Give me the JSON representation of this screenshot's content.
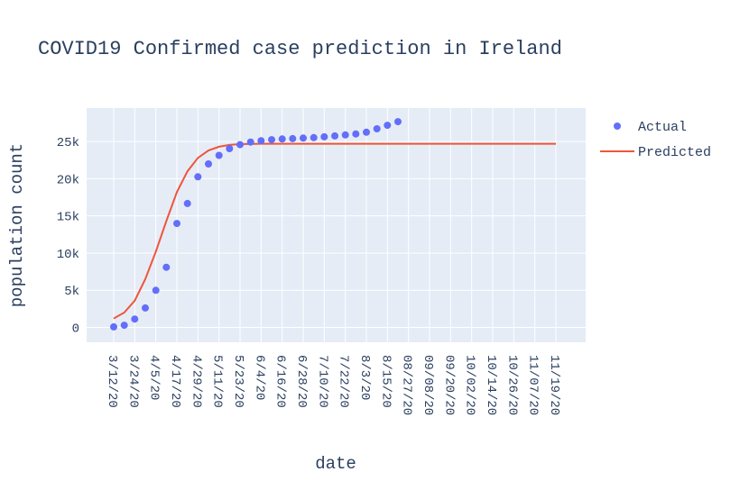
{
  "chart_data": {
    "type": "scatter+line",
    "title": "COVID19 Confirmed case prediction in  Ireland",
    "xlabel": "date",
    "ylabel": "population count",
    "ylim": [
      -2000,
      29500
    ],
    "y_ticks": [
      {
        "value": 0,
        "label": "0"
      },
      {
        "value": 5000,
        "label": "5k"
      },
      {
        "value": 10000,
        "label": "10k"
      },
      {
        "value": 15000,
        "label": "15k"
      },
      {
        "value": 20000,
        "label": "20k"
      },
      {
        "value": 25000,
        "label": "25k"
      }
    ],
    "x_ticks": [
      "3/12/20",
      "3/24/20",
      "4/5/20",
      "4/17/20",
      "4/29/20",
      "5/11/20",
      "5/23/20",
      "6/4/20",
      "6/16/20",
      "6/28/20",
      "7/10/20",
      "7/22/20",
      "8/3/20",
      "8/15/20",
      "08/27/20",
      "09/08/20",
      "09/20/20",
      "10/02/20",
      "10/14/20",
      "10/26/20",
      "11/07/20",
      "11/19/20"
    ],
    "legend": {
      "position": "top-right"
    },
    "grid": true,
    "series": [
      {
        "name": "Actual",
        "mode": "markers",
        "color": "#636efa",
        "points": [
          [
            "3/12/20",
            70
          ],
          [
            "3/18/20",
            290
          ],
          [
            "3/24/20",
            1125
          ],
          [
            "3/30/20",
            2615
          ],
          [
            "4/5/20",
            4994
          ],
          [
            "4/11/20",
            8089
          ],
          [
            "4/17/20",
            13980
          ],
          [
            "4/23/20",
            16671
          ],
          [
            "4/29/20",
            20253
          ],
          [
            "5/5/20",
            21983
          ],
          [
            "5/11/20",
            23135
          ],
          [
            "5/17/20",
            24048
          ],
          [
            "5/23/20",
            24582
          ],
          [
            "5/29/20",
            24929
          ],
          [
            "6/4/20",
            25111
          ],
          [
            "6/10/20",
            25250
          ],
          [
            "6/16/20",
            25341
          ],
          [
            "6/22/20",
            25396
          ],
          [
            "6/28/20",
            25462
          ],
          [
            "7/4/20",
            25527
          ],
          [
            "7/10/20",
            25638
          ],
          [
            "7/16/20",
            25760
          ],
          [
            "7/22/20",
            25892
          ],
          [
            "7/28/20",
            26027
          ],
          [
            "8/3/20",
            26253
          ],
          [
            "8/9/20",
            26712
          ],
          [
            "8/15/20",
            27191
          ],
          [
            "8/21/20",
            27676
          ]
        ]
      },
      {
        "name": "Predicted",
        "mode": "lines",
        "color": "#ef553b",
        "points": [
          [
            "3/12/20",
            1200
          ],
          [
            "3/18/20",
            2000
          ],
          [
            "3/24/20",
            3600
          ],
          [
            "3/30/20",
            6500
          ],
          [
            "4/5/20",
            10200
          ],
          [
            "4/11/20",
            14300
          ],
          [
            "4/17/20",
            18200
          ],
          [
            "4/23/20",
            21000
          ],
          [
            "4/29/20",
            22800
          ],
          [
            "5/5/20",
            23800
          ],
          [
            "5/11/20",
            24300
          ],
          [
            "5/17/20",
            24550
          ],
          [
            "5/23/20",
            24650
          ],
          [
            "6/4/20",
            24700
          ],
          [
            "7/10/20",
            24700
          ],
          [
            "8/15/20",
            24700
          ],
          [
            "09/20/20",
            24700
          ],
          [
            "10/26/20",
            24700
          ],
          [
            "11/19/20",
            24700
          ]
        ]
      }
    ]
  }
}
